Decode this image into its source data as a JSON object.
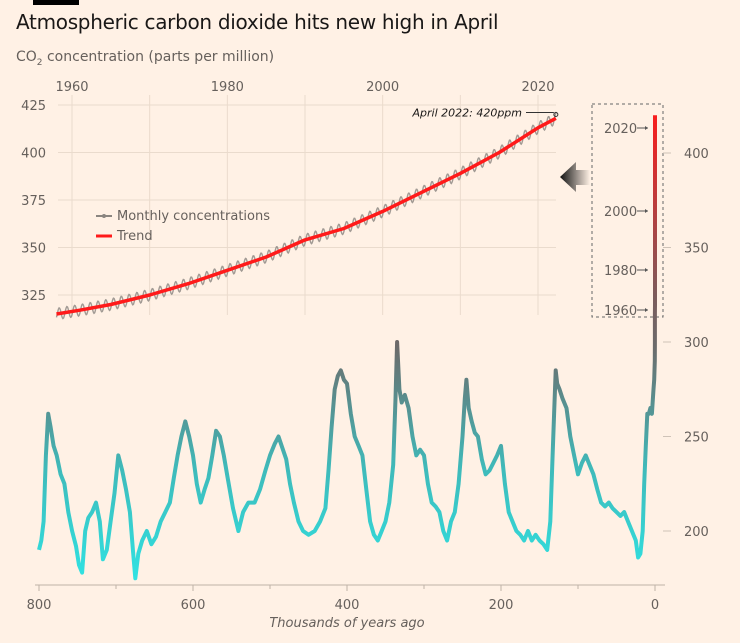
{
  "title": "Atmospheric carbon dioxide hits new high in April",
  "subtitle_prefix": "CO",
  "subtitle_sub": "2",
  "subtitle_suffix": " concentration (parts per million)",
  "colors": {
    "background": "#fff1e5",
    "trend": "#ff1a1a",
    "monthly": "#8a8580",
    "ice_low": "#2ee6e6",
    "ice_high": "#6b6b6b",
    "grid": "#eadbcd",
    "text": "#66605c"
  },
  "chart_data": [
    {
      "type": "line",
      "name": "ice-core",
      "xlabel": "Thousands of years ago",
      "ylabel": "",
      "xlim": [
        800,
        0
      ],
      "ylim": [
        170,
        425
      ],
      "x_ticks": [
        "800",
        "600",
        "400",
        "200",
        "0"
      ],
      "y_ticks": [
        "200",
        "250",
        "300",
        "350",
        "400"
      ],
      "grid": false,
      "points": [
        [
          800,
          190
        ],
        [
          797,
          195
        ],
        [
          794,
          205
        ],
        [
          791,
          240
        ],
        [
          788,
          262
        ],
        [
          785,
          255
        ],
        [
          781,
          245
        ],
        [
          777,
          240
        ],
        [
          772,
          230
        ],
        [
          767,
          225
        ],
        [
          762,
          210
        ],
        [
          757,
          200
        ],
        [
          752,
          192
        ],
        [
          748,
          182
        ],
        [
          744,
          178
        ],
        [
          740,
          200
        ],
        [
          736,
          207
        ],
        [
          731,
          210
        ],
        [
          726,
          215
        ],
        [
          721,
          205
        ],
        [
          717,
          185
        ],
        [
          712,
          190
        ],
        [
          707,
          205
        ],
        [
          702,
          220
        ],
        [
          697,
          240
        ],
        [
          692,
          232
        ],
        [
          687,
          222
        ],
        [
          682,
          210
        ],
        [
          678,
          190
        ],
        [
          675,
          175
        ],
        [
          671,
          188
        ],
        [
          666,
          195
        ],
        [
          660,
          200
        ],
        [
          654,
          193
        ],
        [
          648,
          197
        ],
        [
          642,
          205
        ],
        [
          636,
          210
        ],
        [
          630,
          215
        ],
        [
          625,
          228
        ],
        [
          620,
          240
        ],
        [
          615,
          250
        ],
        [
          610,
          258
        ],
        [
          605,
          250
        ],
        [
          600,
          240
        ],
        [
          595,
          225
        ],
        [
          590,
          215
        ],
        [
          585,
          222
        ],
        [
          580,
          228
        ],
        [
          575,
          240
        ],
        [
          570,
          253
        ],
        [
          565,
          250
        ],
        [
          560,
          240
        ],
        [
          555,
          228
        ],
        [
          548,
          212
        ],
        [
          541,
          200
        ],
        [
          535,
          210
        ],
        [
          528,
          215
        ],
        [
          520,
          215
        ],
        [
          513,
          222
        ],
        [
          506,
          232
        ],
        [
          500,
          240
        ],
        [
          494,
          246
        ],
        [
          489,
          250
        ],
        [
          484,
          244
        ],
        [
          479,
          238
        ],
        [
          474,
          225
        ],
        [
          469,
          215
        ],
        [
          463,
          205
        ],
        [
          457,
          200
        ],
        [
          450,
          198
        ],
        [
          442,
          200
        ],
        [
          435,
          205
        ],
        [
          428,
          212
        ],
        [
          424,
          232
        ],
        [
          420,
          255
        ],
        [
          416,
          275
        ],
        [
          412,
          282
        ],
        [
          408,
          285
        ],
        [
          404,
          280
        ],
        [
          400,
          278
        ],
        [
          395,
          262
        ],
        [
          390,
          250
        ],
        [
          385,
          245
        ],
        [
          380,
          240
        ],
        [
          375,
          222
        ],
        [
          370,
          205
        ],
        [
          365,
          198
        ],
        [
          360,
          195
        ],
        [
          355,
          200
        ],
        [
          350,
          205
        ],
        [
          345,
          215
        ],
        [
          340,
          235
        ],
        [
          337,
          270
        ],
        [
          335,
          300
        ],
        [
          332,
          275
        ],
        [
          329,
          268
        ],
        [
          325,
          272
        ],
        [
          320,
          265
        ],
        [
          315,
          250
        ],
        [
          310,
          240
        ],
        [
          305,
          243
        ],
        [
          300,
          240
        ],
        [
          295,
          225
        ],
        [
          290,
          215
        ],
        [
          285,
          213
        ],
        [
          280,
          210
        ],
        [
          275,
          200
        ],
        [
          270,
          195
        ],
        [
          265,
          205
        ],
        [
          260,
          210
        ],
        [
          255,
          225
        ],
        [
          250,
          250
        ],
        [
          247,
          270
        ],
        [
          245,
          280
        ],
        [
          242,
          265
        ],
        [
          238,
          258
        ],
        [
          234,
          252
        ],
        [
          230,
          250
        ],
        [
          225,
          238
        ],
        [
          220,
          230
        ],
        [
          215,
          232
        ],
        [
          210,
          236
        ],
        [
          205,
          240
        ],
        [
          200,
          245
        ],
        [
          195,
          225
        ],
        [
          190,
          210
        ],
        [
          185,
          205
        ],
        [
          180,
          200
        ],
        [
          175,
          198
        ],
        [
          170,
          195
        ],
        [
          165,
          200
        ],
        [
          160,
          195
        ],
        [
          155,
          198
        ],
        [
          150,
          195
        ],
        [
          145,
          193
        ],
        [
          140,
          190
        ],
        [
          136,
          205
        ],
        [
          133,
          240
        ],
        [
          131,
          262
        ],
        [
          129,
          285
        ],
        [
          127,
          278
        ],
        [
          124,
          275
        ],
        [
          120,
          270
        ],
        [
          115,
          265
        ],
        [
          110,
          250
        ],
        [
          105,
          240
        ],
        [
          100,
          230
        ],
        [
          95,
          236
        ],
        [
          90,
          240
        ],
        [
          85,
          235
        ],
        [
          80,
          230
        ],
        [
          75,
          222
        ],
        [
          70,
          215
        ],
        [
          65,
          213
        ],
        [
          60,
          215
        ],
        [
          55,
          212
        ],
        [
          50,
          210
        ],
        [
          45,
          208
        ],
        [
          40,
          210
        ],
        [
          35,
          205
        ],
        [
          30,
          200
        ],
        [
          25,
          195
        ],
        [
          22,
          186
        ],
        [
          19,
          188
        ],
        [
          16,
          200
        ],
        [
          14,
          225
        ],
        [
          12,
          245
        ],
        [
          10,
          262
        ],
        [
          8,
          262
        ],
        [
          6,
          265
        ],
        [
          4,
          262
        ],
        [
          2,
          275
        ],
        [
          1,
          280
        ],
        [
          0.3,
          290
        ],
        [
          0.15,
          300
        ],
        [
          0.08,
          315
        ],
        [
          0.06,
          320
        ],
        [
          0.04,
          340
        ],
        [
          0.02,
          370
        ],
        [
          0.008,
          400
        ],
        [
          0,
          420
        ]
      ]
    },
    {
      "type": "line",
      "name": "inset",
      "xlim": [
        1958,
        2022.3
      ],
      "ylim": [
        312,
        425
      ],
      "x_ticks": [
        "1960",
        "1980",
        "2000",
        "2020"
      ],
      "y_ticks": [
        "325",
        "350",
        "375",
        "400",
        "425"
      ],
      "grid": true,
      "legend_placement": "top-left",
      "series": [
        {
          "name": "Monthly concentrations",
          "seasonal_amplitude_ppm": 3
        },
        {
          "name": "Trend",
          "points": [
            [
              1958,
              315
            ],
            [
              1961,
              317
            ],
            [
              1965,
              320
            ],
            [
              1970,
              325
            ],
            [
              1975,
              331
            ],
            [
              1980,
              338
            ],
            [
              1985,
              345
            ],
            [
              1990,
              354
            ],
            [
              1995,
              360
            ],
            [
              2000,
              369
            ],
            [
              2005,
              379
            ],
            [
              2010,
              389
            ],
            [
              2015,
              400
            ],
            [
              2020,
              413
            ],
            [
              2022.3,
              418
            ]
          ]
        }
      ],
      "annotation": "April 2022: 420ppm",
      "annotation_value": {
        "year": 2022.3,
        "ppm": 420
      },
      "zoom_labels": [
        "2020",
        "2000",
        "1980",
        "1960"
      ]
    }
  ]
}
